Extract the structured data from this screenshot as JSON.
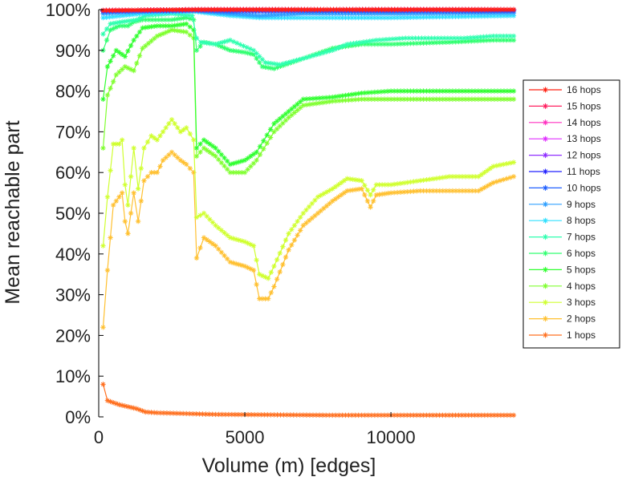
{
  "chart_data": {
    "type": "line",
    "xlabel": "Volume (m) [edges]",
    "ylabel": "Mean reachable part",
    "xlim": [
      0,
      14200
    ],
    "ylim": [
      0,
      1
    ],
    "xticks": [
      0,
      5000,
      10000
    ],
    "xtick_labels": [
      "0",
      "5000",
      "10000"
    ],
    "yticks": [
      0,
      0.1,
      0.2,
      0.3,
      0.4,
      0.5,
      0.6,
      0.7,
      0.8,
      0.9,
      1.0
    ],
    "ytick_labels": [
      "0%",
      "10%",
      "20%",
      "30%",
      "40%",
      "50%",
      "60%",
      "70%",
      "80%",
      "90%",
      "100%"
    ],
    "legend_position": "right",
    "marker": "star",
    "series": [
      {
        "name": "16 hops",
        "color": "#ff2010",
        "points": [
          [
            150,
            0.998
          ],
          [
            3300,
            1.0
          ],
          [
            14200,
            1.0
          ]
        ]
      },
      {
        "name": "15 hops",
        "color": "#ff2060",
        "points": [
          [
            150,
            0.998
          ],
          [
            3300,
            1.0
          ],
          [
            14200,
            1.0
          ]
        ]
      },
      {
        "name": "14 hops",
        "color": "#ff30c0",
        "points": [
          [
            150,
            0.998
          ],
          [
            3300,
            1.0
          ],
          [
            14200,
            1.0
          ]
        ]
      },
      {
        "name": "13 hops",
        "color": "#e030ff",
        "points": [
          [
            150,
            0.998
          ],
          [
            3300,
            1.0
          ],
          [
            14200,
            1.0
          ]
        ]
      },
      {
        "name": "12 hops",
        "color": "#9030ff",
        "points": [
          [
            150,
            0.998
          ],
          [
            3300,
            1.0
          ],
          [
            14200,
            1.0
          ]
        ]
      },
      {
        "name": "11 hops",
        "color": "#2020ff",
        "points": [
          [
            150,
            0.997
          ],
          [
            3300,
            0.999
          ],
          [
            14200,
            0.999
          ]
        ]
      },
      {
        "name": "10 hops",
        "color": "#2060ff",
        "points": [
          [
            150,
            0.995
          ],
          [
            3300,
            0.998
          ],
          [
            4500,
            0.995
          ],
          [
            7000,
            0.996
          ],
          [
            14200,
            0.996
          ]
        ]
      },
      {
        "name": "9 hops",
        "color": "#30a0ff",
        "points": [
          [
            150,
            0.99
          ],
          [
            1500,
            0.995
          ],
          [
            3300,
            0.997
          ],
          [
            4500,
            0.99
          ],
          [
            5500,
            0.985
          ],
          [
            7000,
            0.99
          ],
          [
            10000,
            0.99
          ],
          [
            14200,
            0.992
          ]
        ]
      },
      {
        "name": "8 hops",
        "color": "#30e0ff",
        "points": [
          [
            150,
            0.98
          ],
          [
            1500,
            0.99
          ],
          [
            3300,
            0.995
          ],
          [
            4500,
            0.985
          ],
          [
            5500,
            0.98
          ],
          [
            7000,
            0.98
          ],
          [
            10000,
            0.98
          ],
          [
            14200,
            0.985
          ]
        ]
      },
      {
        "name": "7 hops",
        "color": "#30ffb0",
        "points": [
          [
            150,
            0.94
          ],
          [
            400,
            0.965
          ],
          [
            800,
            0.97
          ],
          [
            1300,
            0.975
          ],
          [
            1600,
            0.985
          ],
          [
            2500,
            0.99
          ],
          [
            3200,
            0.985
          ],
          [
            3350,
            0.93
          ],
          [
            3500,
            0.92
          ],
          [
            4000,
            0.915
          ],
          [
            4500,
            0.925
          ],
          [
            5300,
            0.9
          ],
          [
            5700,
            0.87
          ],
          [
            6200,
            0.865
          ],
          [
            7000,
            0.88
          ],
          [
            8000,
            0.9
          ],
          [
            8500,
            0.915
          ],
          [
            9500,
            0.925
          ],
          [
            10500,
            0.93
          ],
          [
            12500,
            0.93
          ],
          [
            13500,
            0.935
          ],
          [
            14200,
            0.935
          ]
        ]
      },
      {
        "name": "6 hops",
        "color": "#30ff70",
        "points": [
          [
            150,
            0.9
          ],
          [
            400,
            0.95
          ],
          [
            700,
            0.96
          ],
          [
            1000,
            0.96
          ],
          [
            1200,
            0.97
          ],
          [
            1500,
            0.975
          ],
          [
            2500,
            0.975
          ],
          [
            3000,
            0.98
          ],
          [
            3250,
            0.975
          ],
          [
            3350,
            0.9
          ],
          [
            3600,
            0.92
          ],
          [
            4000,
            0.915
          ],
          [
            4500,
            0.9
          ],
          [
            5000,
            0.895
          ],
          [
            5300,
            0.89
          ],
          [
            5600,
            0.86
          ],
          [
            6000,
            0.855
          ],
          [
            7000,
            0.88
          ],
          [
            8000,
            0.905
          ],
          [
            9000,
            0.915
          ],
          [
            10000,
            0.915
          ],
          [
            12000,
            0.92
          ],
          [
            13500,
            0.925
          ],
          [
            14200,
            0.925
          ]
        ]
      },
      {
        "name": "5 hops",
        "color": "#30ff30",
        "points": [
          [
            150,
            0.78
          ],
          [
            300,
            0.86
          ],
          [
            600,
            0.9
          ],
          [
            900,
            0.885
          ],
          [
            1200,
            0.925
          ],
          [
            1500,
            0.955
          ],
          [
            2000,
            0.96
          ],
          [
            2500,
            0.96
          ],
          [
            3000,
            0.965
          ],
          [
            3250,
            0.95
          ],
          [
            3350,
            0.66
          ],
          [
            3600,
            0.68
          ],
          [
            4000,
            0.66
          ],
          [
            4500,
            0.62
          ],
          [
            5000,
            0.63
          ],
          [
            5400,
            0.65
          ],
          [
            6000,
            0.72
          ],
          [
            6500,
            0.75
          ],
          [
            7000,
            0.78
          ],
          [
            8000,
            0.785
          ],
          [
            9000,
            0.795
          ],
          [
            10000,
            0.8
          ],
          [
            12000,
            0.8
          ],
          [
            14200,
            0.8
          ]
        ]
      },
      {
        "name": "4 hops",
        "color": "#80ff30",
        "points": [
          [
            150,
            0.66
          ],
          [
            300,
            0.79
          ],
          [
            600,
            0.84
          ],
          [
            900,
            0.86
          ],
          [
            1200,
            0.85
          ],
          [
            1500,
            0.905
          ],
          [
            2000,
            0.935
          ],
          [
            2500,
            0.95
          ],
          [
            3000,
            0.945
          ],
          [
            3250,
            0.93
          ],
          [
            3350,
            0.64
          ],
          [
            3600,
            0.66
          ],
          [
            4000,
            0.64
          ],
          [
            4500,
            0.6
          ],
          [
            5000,
            0.6
          ],
          [
            5400,
            0.63
          ],
          [
            6000,
            0.7
          ],
          [
            6500,
            0.735
          ],
          [
            7000,
            0.765
          ],
          [
            8000,
            0.775
          ],
          [
            9000,
            0.78
          ],
          [
            10000,
            0.78
          ],
          [
            12000,
            0.78
          ],
          [
            14200,
            0.78
          ]
        ]
      },
      {
        "name": "3 hops",
        "color": "#d0ff30",
        "points": [
          [
            150,
            0.42
          ],
          [
            300,
            0.54
          ],
          [
            500,
            0.67
          ],
          [
            700,
            0.67
          ],
          [
            800,
            0.68
          ],
          [
            900,
            0.57
          ],
          [
            1000,
            0.52
          ],
          [
            1200,
            0.66
          ],
          [
            1350,
            0.56
          ],
          [
            1550,
            0.66
          ],
          [
            1800,
            0.69
          ],
          [
            2000,
            0.68
          ],
          [
            2200,
            0.7
          ],
          [
            2500,
            0.73
          ],
          [
            2800,
            0.7
          ],
          [
            3000,
            0.71
          ],
          [
            3250,
            0.68
          ],
          [
            3350,
            0.49
          ],
          [
            3600,
            0.5
          ],
          [
            4000,
            0.47
          ],
          [
            4500,
            0.44
          ],
          [
            5000,
            0.43
          ],
          [
            5300,
            0.42
          ],
          [
            5500,
            0.35
          ],
          [
            5800,
            0.34
          ],
          [
            6000,
            0.37
          ],
          [
            6500,
            0.45
          ],
          [
            7000,
            0.5
          ],
          [
            7500,
            0.54
          ],
          [
            8000,
            0.56
          ],
          [
            8500,
            0.585
          ],
          [
            9000,
            0.58
          ],
          [
            9300,
            0.545
          ],
          [
            9500,
            0.57
          ],
          [
            10000,
            0.57
          ],
          [
            11000,
            0.58
          ],
          [
            12000,
            0.59
          ],
          [
            13000,
            0.59
          ],
          [
            13500,
            0.615
          ],
          [
            14200,
            0.625
          ]
        ]
      },
      {
        "name": "2 hops",
        "color": "#ffc030",
        "points": [
          [
            150,
            0.22
          ],
          [
            300,
            0.36
          ],
          [
            500,
            0.52
          ],
          [
            700,
            0.54
          ],
          [
            800,
            0.55
          ],
          [
            900,
            0.48
          ],
          [
            1000,
            0.45
          ],
          [
            1200,
            0.55
          ],
          [
            1350,
            0.48
          ],
          [
            1550,
            0.58
          ],
          [
            1800,
            0.6
          ],
          [
            2000,
            0.6
          ],
          [
            2200,
            0.63
          ],
          [
            2500,
            0.65
          ],
          [
            2800,
            0.63
          ],
          [
            3000,
            0.62
          ],
          [
            3250,
            0.6
          ],
          [
            3350,
            0.39
          ],
          [
            3600,
            0.44
          ],
          [
            4000,
            0.42
          ],
          [
            4500,
            0.38
          ],
          [
            5000,
            0.37
          ],
          [
            5300,
            0.36
          ],
          [
            5500,
            0.29
          ],
          [
            5800,
            0.29
          ],
          [
            6000,
            0.32
          ],
          [
            6500,
            0.41
          ],
          [
            7000,
            0.47
          ],
          [
            7500,
            0.5
          ],
          [
            8000,
            0.53
          ],
          [
            8500,
            0.555
          ],
          [
            9000,
            0.56
          ],
          [
            9300,
            0.515
          ],
          [
            9500,
            0.545
          ],
          [
            10000,
            0.55
          ],
          [
            11000,
            0.555
          ],
          [
            12000,
            0.555
          ],
          [
            13000,
            0.555
          ],
          [
            13500,
            0.575
          ],
          [
            14200,
            0.59
          ]
        ]
      },
      {
        "name": "1 hops",
        "color": "#ff7020",
        "points": [
          [
            150,
            0.08
          ],
          [
            300,
            0.04
          ],
          [
            500,
            0.035
          ],
          [
            700,
            0.03
          ],
          [
            1000,
            0.025
          ],
          [
            1300,
            0.02
          ],
          [
            1600,
            0.012
          ],
          [
            2000,
            0.01
          ],
          [
            3000,
            0.008
          ],
          [
            4000,
            0.006
          ],
          [
            6000,
            0.005
          ],
          [
            8000,
            0.004
          ],
          [
            10000,
            0.004
          ],
          [
            14200,
            0.004
          ]
        ]
      }
    ]
  }
}
